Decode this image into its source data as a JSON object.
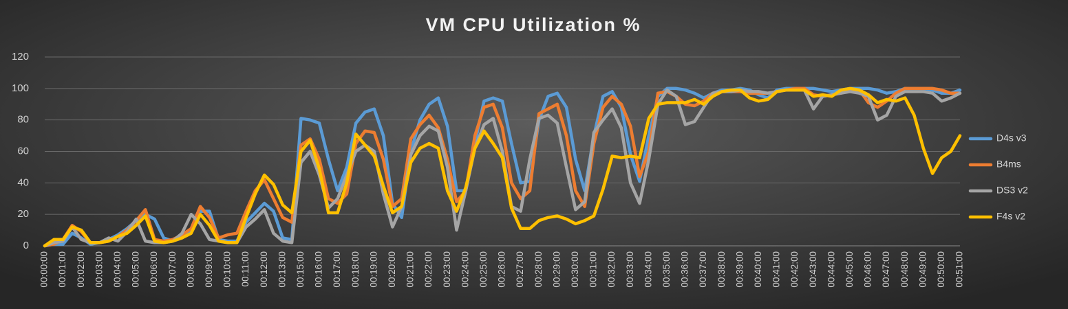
{
  "chart_data": {
    "type": "line",
    "title": "VM CPU Utilization %",
    "categories": [
      "00:00:00",
      null,
      "00:01:00",
      null,
      "00:02:00",
      null,
      "00:03:00",
      null,
      "00:04:00",
      null,
      "00:05:00",
      null,
      "00:06:00",
      null,
      "00:07:00",
      null,
      "00:08:00",
      null,
      "00:09:00",
      null,
      "00:10:00",
      null,
      "00:11:00",
      null,
      "00:12:00",
      null,
      "00:13:00",
      null,
      "00:15:00",
      null,
      "00:16:00",
      null,
      "00:17:00",
      null,
      "00:18:00",
      null,
      "00:19:00",
      null,
      "00:20:00",
      null,
      "00:21:00",
      null,
      "00:22:00",
      null,
      "00:23:00",
      null,
      "00:24:00",
      null,
      "00:25:00",
      null,
      "00:26:00",
      null,
      "00:27:00",
      null,
      "00:28:00",
      null,
      "00:29:00",
      null,
      "00:30:00",
      null,
      "00:31:00",
      null,
      "00:32:00",
      null,
      "00:33:00",
      null,
      "00:34:00",
      null,
      "00:35:00",
      null,
      "00:36:00",
      null,
      "00:37:00",
      null,
      "00:38:00",
      null,
      "00:39:00",
      null,
      "00:40:00",
      null,
      "00:41:00",
      null,
      "00:42:00",
      null,
      "00:43:00",
      null,
      "00:44:00",
      null,
      "00:45:00",
      null,
      "00:46:00",
      null,
      "00:47:00",
      null,
      "00:48:00",
      null,
      "00:49:00",
      null,
      "00:50:00",
      null,
      "00:51:00"
    ],
    "series": [
      {
        "name": "D4s v3",
        "color": "#5b9bd5",
        "values": [
          0,
          1,
          1,
          8,
          5,
          1,
          2,
          4,
          7,
          11,
          16,
          20,
          17,
          5,
          3,
          5,
          10,
          22,
          22,
          4,
          3,
          3,
          15,
          21,
          27,
          22,
          5,
          4,
          81,
          80,
          78,
          55,
          35,
          50,
          78,
          85,
          87,
          70,
          27,
          18,
          60,
          80,
          90,
          94,
          76,
          35,
          35,
          65,
          92,
          94,
          92,
          65,
          40,
          41,
          80,
          95,
          97,
          88,
          55,
          35,
          70,
          95,
          98,
          88,
          58,
          41,
          70,
          95,
          100,
          100,
          99,
          97,
          94,
          97,
          99,
          99,
          100,
          99,
          96,
          94,
          99,
          100,
          100,
          100,
          100,
          99,
          98,
          99,
          100,
          100,
          100,
          99,
          97,
          98,
          100,
          100,
          100,
          99,
          97,
          97,
          99
        ]
      },
      {
        "name": "B4ms",
        "color": "#ed7d31",
        "values": [
          0,
          1,
          4,
          13,
          9,
          2,
          2,
          3,
          6,
          10,
          16,
          23,
          4,
          3,
          4,
          7,
          11,
          25,
          18,
          5,
          7,
          8,
          22,
          35,
          42,
          30,
          18,
          15,
          64,
          68,
          55,
          30,
          27,
          33,
          65,
          73,
          72,
          55,
          25,
          30,
          68,
          77,
          83,
          75,
          55,
          28,
          35,
          70,
          88,
          90,
          75,
          40,
          30,
          35,
          84,
          87,
          90,
          70,
          35,
          25,
          65,
          88,
          95,
          90,
          76,
          44,
          60,
          97,
          98,
          95,
          90,
          89,
          92,
          97,
          98,
          98,
          98,
          97,
          97,
          97,
          98,
          99,
          100,
          100,
          96,
          95,
          96,
          97,
          99,
          99,
          91,
          88,
          92,
          97,
          100,
          100,
          100,
          100,
          99,
          97,
          97
        ]
      },
      {
        "name": "DS3 v2",
        "color": "#a5a5a5",
        "values": [
          0,
          2,
          3,
          12,
          4,
          2,
          2,
          5,
          3,
          9,
          17,
          3,
          2,
          2,
          3,
          8,
          20,
          14,
          4,
          3,
          2,
          2,
          12,
          17,
          23,
          8,
          3,
          2,
          53,
          60,
          45,
          24,
          30,
          45,
          60,
          64,
          60,
          33,
          12,
          25,
          58,
          70,
          76,
          73,
          50,
          10,
          35,
          62,
          77,
          81,
          60,
          25,
          22,
          55,
          81,
          83,
          78,
          50,
          23,
          28,
          72,
          80,
          87,
          75,
          40,
          27,
          55,
          90,
          99,
          95,
          77,
          79,
          88,
          97,
          98,
          98,
          99,
          98,
          98,
          97,
          98,
          99,
          99,
          99,
          87,
          95,
          96,
          97,
          98,
          97,
          95,
          80,
          83,
          95,
          98,
          98,
          98,
          97,
          92,
          94,
          97
        ]
      },
      {
        "name": "F4s v2",
        "color": "#ffc000",
        "values": [
          0,
          4,
          4,
          12,
          10,
          2,
          2,
          3,
          6,
          8,
          13,
          19,
          3,
          2,
          3,
          5,
          8,
          20,
          13,
          3,
          2,
          2,
          18,
          33,
          45,
          39,
          26,
          21,
          60,
          67,
          49,
          21,
          21,
          40,
          71,
          64,
          57,
          38,
          21,
          25,
          53,
          62,
          65,
          62,
          35,
          22,
          37,
          62,
          73,
          65,
          56,
          24,
          11,
          11,
          16,
          18,
          19,
          17,
          14,
          16,
          19,
          36,
          57,
          56,
          57,
          56,
          81,
          90,
          91,
          91,
          91,
          93,
          90,
          95,
          98,
          99,
          99,
          94,
          92,
          93,
          98,
          99,
          99,
          99,
          95,
          96,
          95,
          99,
          100,
          99,
          96,
          91,
          93,
          92,
          94,
          83,
          62,
          46,
          56,
          60,
          70
        ]
      }
    ],
    "ylim": [
      0,
      120
    ],
    "yticks": [
      0,
      20,
      40,
      60,
      80,
      100,
      120
    ],
    "grid": true,
    "legend": "right"
  }
}
